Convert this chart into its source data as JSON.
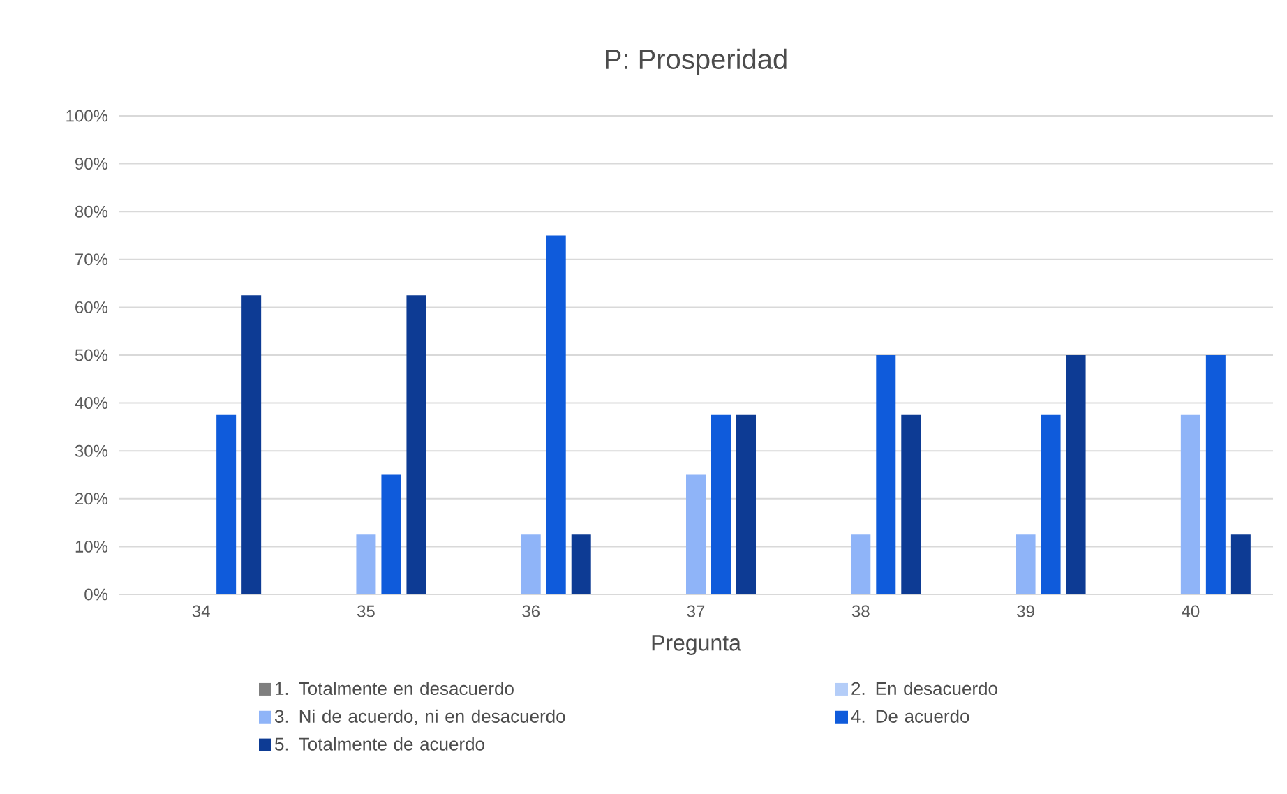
{
  "chart_data": {
    "type": "bar",
    "title": "P: Prosperidad",
    "xlabel": "Pregunta",
    "categories": [
      "34",
      "35",
      "36",
      "37",
      "38",
      "39",
      "40"
    ],
    "series": [
      {
        "name": "1. Totalmente en desacuerdo",
        "color": "#7f7f7f",
        "values": [
          0,
          0,
          0,
          0,
          0,
          0,
          0
        ]
      },
      {
        "name": "2. En desacuerdo",
        "color": "#b4cdf8",
        "values": [
          0,
          0,
          0,
          0,
          0,
          0,
          0
        ]
      },
      {
        "name": "3. Ni de acuerdo, ni en desacuerdo",
        "color": "#8fb4f8",
        "values": [
          0,
          12.5,
          12.5,
          25,
          12.5,
          12.5,
          37.5
        ]
      },
      {
        "name": "4. De acuerdo",
        "color": "#0f5bdb",
        "values": [
          37.5,
          25,
          75,
          37.5,
          50,
          37.5,
          50
        ]
      },
      {
        "name": "5. Totalmente de acuerdo",
        "color": "#0d3b94",
        "values": [
          62.5,
          62.5,
          12.5,
          37.5,
          37.5,
          50,
          12.5
        ]
      }
    ],
    "ylim": [
      0,
      100
    ],
    "yticks": [
      {
        "value": 0,
        "label": "0%"
      },
      {
        "value": 10,
        "label": "10%"
      },
      {
        "value": 20,
        "label": "20%"
      },
      {
        "value": 30,
        "label": "30%"
      },
      {
        "value": 40,
        "label": "40%"
      },
      {
        "value": 50,
        "label": "50%"
      },
      {
        "value": 60,
        "label": "60%"
      },
      {
        "value": 70,
        "label": "70%"
      },
      {
        "value": 80,
        "label": "80%"
      },
      {
        "value": 90,
        "label": "90%"
      },
      {
        "value": 100,
        "label": "100%"
      }
    ],
    "grid": "y",
    "legend": "bottom"
  }
}
